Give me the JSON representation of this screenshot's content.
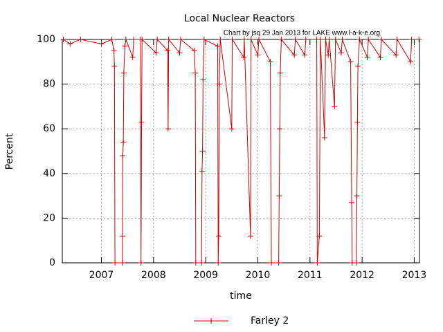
{
  "chart_data": {
    "type": "line",
    "title": "Local Nuclear Reactors",
    "annotation": "Chart by jsq 29 Jan 2013 for LAKE www.l-a-k-e.org",
    "x_label": "time",
    "y_label": "Percent",
    "xlim": [
      2006.25,
      2013.1
    ],
    "xticks": [
      2007,
      2008,
      2009,
      2010,
      2011,
      2012,
      2013
    ],
    "ylim": [
      0,
      100
    ],
    "yticks": [
      0,
      20,
      40,
      60,
      80,
      100
    ],
    "grid": true,
    "legend": "bottom",
    "series": [
      {
        "name": "Farley 2",
        "color": "#cc0000",
        "x": [
          2006.27,
          2006.4,
          2006.6,
          2007.0,
          2007.2,
          2007.24,
          2007.25,
          2007.26,
          2007.4,
          2007.405,
          2007.41,
          2007.42,
          2007.43,
          2007.45,
          2007.47,
          2007.6,
          2007.62,
          2007.75,
          2007.76,
          2007.77,
          2007.78,
          2008.05,
          2008.07,
          2008.27,
          2008.28,
          2008.29,
          2008.5,
          2008.52,
          2008.78,
          2008.8,
          2008.81,
          2008.92,
          2008.93,
          2008.94,
          2008.95,
          2008.97,
          2009.23,
          2009.24,
          2009.25,
          2009.26,
          2009.28,
          2009.5,
          2009.51,
          2009.73,
          2009.74,
          2009.86,
          2009.87,
          2010.0,
          2010.02,
          2010.24,
          2010.26,
          2010.4,
          2010.41,
          2010.42,
          2010.43,
          2010.45,
          2010.7,
          2010.72,
          2010.9,
          2010.92,
          2011.13,
          2011.14,
          2011.18,
          2011.2,
          2011.28,
          2011.3,
          2011.35,
          2011.37,
          2011.47,
          2011.49,
          2011.6,
          2011.62,
          2011.78,
          2011.8,
          2011.81,
          2011.89,
          2011.9,
          2011.91,
          2011.92,
          2011.95,
          2012.1,
          2012.12,
          2012.35,
          2012.37,
          2012.65,
          2012.67,
          2012.93,
          2012.95,
          2013.09
        ],
        "values": [
          100,
          98,
          100,
          98,
          100,
          95,
          88,
          0,
          0,
          12,
          48,
          54,
          85,
          97,
          100,
          92,
          100,
          100,
          0,
          63,
          100,
          94,
          100,
          95,
          60,
          100,
          94,
          100,
          95,
          85,
          0,
          0,
          41,
          50,
          82,
          100,
          97,
          0,
          12,
          80,
          100,
          60,
          100,
          92,
          100,
          12,
          100,
          93,
          100,
          90,
          0,
          0,
          30,
          60,
          85,
          100,
          93,
          100,
          93,
          100,
          100,
          0,
          12,
          100,
          56,
          100,
          93,
          100,
          70,
          100,
          94,
          100,
          90,
          27,
          0,
          0,
          30,
          63,
          88,
          100,
          92,
          100,
          92,
          100,
          93,
          100,
          90,
          100,
          100
        ]
      }
    ]
  }
}
